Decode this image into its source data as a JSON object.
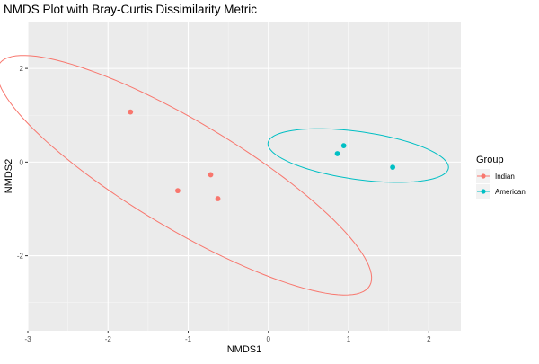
{
  "chart_data": {
    "type": "scatter",
    "title": "NMDS Plot with Bray-Curtis Dissimilarity Metric",
    "xlabel": "NMDS1",
    "ylabel": "NMDS2",
    "xlim": [
      -3,
      2.4
    ],
    "ylim": [
      -3.6,
      3.0
    ],
    "xticks": [
      -3,
      -2,
      -1,
      0,
      1,
      2
    ],
    "xtick_labels": [
      "-3",
      "-2",
      "-1",
      "0",
      "1",
      "2"
    ],
    "yticks": [
      -2,
      0,
      2
    ],
    "ytick_labels": [
      "-2",
      "0",
      "2"
    ],
    "grid": true,
    "legend": {
      "title": "Group",
      "placement": "right",
      "entries": [
        "Indian",
        "American"
      ]
    },
    "series": [
      {
        "name": "Indian",
        "color": "#F8766D",
        "points": [
          {
            "x": -1.72,
            "y": 1.07
          },
          {
            "x": -1.13,
            "y": -0.61
          },
          {
            "x": -0.72,
            "y": -0.27
          },
          {
            "x": -0.63,
            "y": -0.78
          }
        ],
        "ellipse": {
          "cx": -1.05,
          "cy": -0.28,
          "rx": 3.34,
          "ry": 0.92,
          "angle_deg": -48
        }
      },
      {
        "name": "American",
        "color": "#00BFC4",
        "points": [
          {
            "x": 0.86,
            "y": 0.18
          },
          {
            "x": 0.94,
            "y": 0.35
          },
          {
            "x": 1.55,
            "y": -0.11
          }
        ],
        "ellipse": {
          "cx": 1.12,
          "cy": 0.14,
          "rx": 1.16,
          "ry": 0.5,
          "angle_deg": -15.5
        }
      }
    ]
  }
}
